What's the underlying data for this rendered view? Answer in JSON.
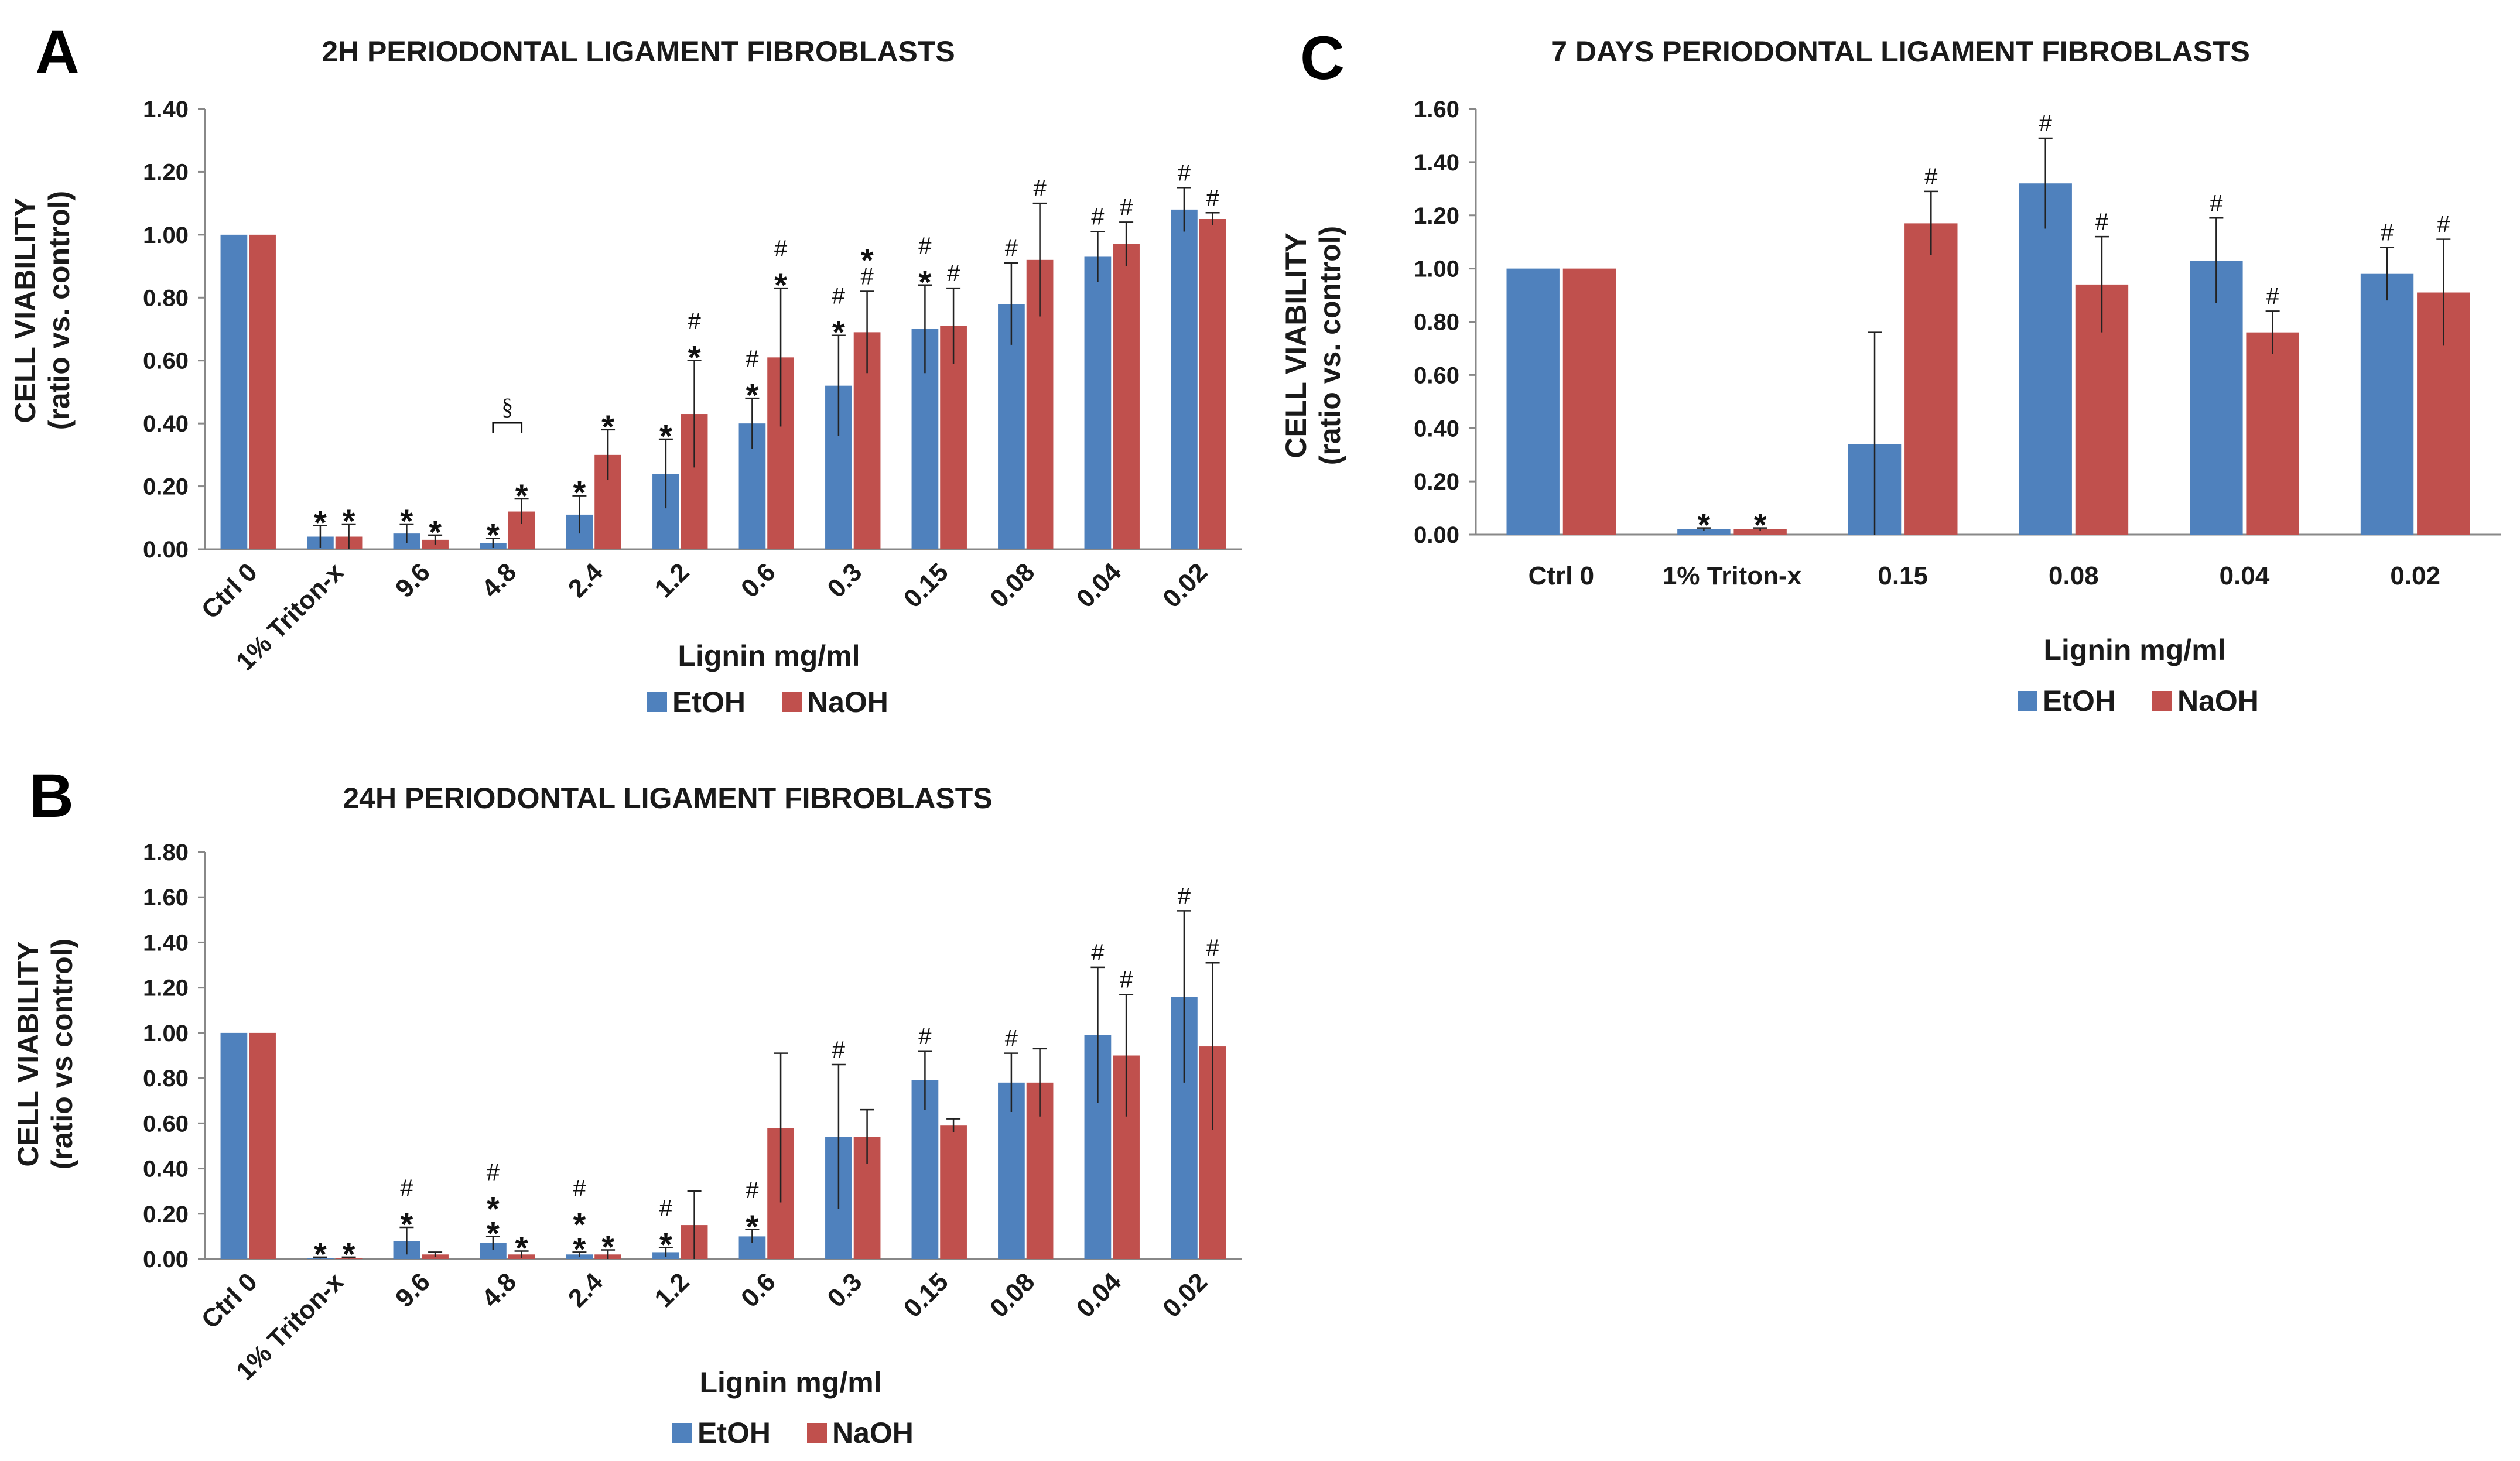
{
  "colors": {
    "etoh": "#4f81bd",
    "naoh": "#c0504d",
    "axis": "#888888",
    "text": "#1a1a1a"
  },
  "chart_data": [
    {
      "panel": "A",
      "type": "bar",
      "title": "2H PERIODONTAL LIGAMENT FIBROBLASTS",
      "ylabel_line1": "CELL VIABILITY",
      "ylabel_line2": "(ratio vs. control)",
      "xlabel": "Lignin mg/ml",
      "ylim": [
        0,
        1.4
      ],
      "yticks": [
        "0.00",
        "0.20",
        "0.40",
        "0.60",
        "0.80",
        "1.00",
        "1.20",
        "1.40"
      ],
      "categories": [
        "Ctrl 0",
        "1% Triton-x",
        "9.6",
        "4.8",
        "2.4",
        "1.2",
        "0.6",
        "0.3",
        "0.15",
        "0.08",
        "0.04",
        "0.02"
      ],
      "series": [
        {
          "name": "EtOH",
          "values": [
            1.0,
            0.04,
            0.05,
            0.02,
            0.11,
            0.24,
            0.4,
            0.52,
            0.7,
            0.78,
            0.93,
            1.08
          ],
          "errors": [
            0.0,
            0.035,
            0.03,
            0.015,
            0.06,
            0.11,
            0.08,
            0.16,
            0.14,
            0.13,
            0.08,
            0.07
          ]
        },
        {
          "name": "NaOH",
          "values": [
            1.0,
            0.04,
            0.03,
            0.12,
            0.3,
            0.43,
            0.61,
            0.69,
            0.71,
            0.92,
            0.97,
            1.05
          ],
          "errors": [
            0.0,
            0.04,
            0.015,
            0.04,
            0.08,
            0.17,
            0.22,
            0.13,
            0.12,
            0.18,
            0.07,
            0.02
          ]
        }
      ],
      "annotations": [
        {
          "cat": 1,
          "series": 0,
          "marks": [
            "*"
          ]
        },
        {
          "cat": 1,
          "series": 1,
          "marks": [
            "*"
          ]
        },
        {
          "cat": 2,
          "series": 0,
          "marks": [
            "*"
          ]
        },
        {
          "cat": 2,
          "series": 1,
          "marks": [
            "*"
          ]
        },
        {
          "cat": 3,
          "series": 0,
          "marks": [
            "*"
          ]
        },
        {
          "cat": 3,
          "series": 1,
          "marks": [
            "*"
          ]
        },
        {
          "cat": 4,
          "series": 0,
          "marks": [
            "*"
          ]
        },
        {
          "cat": 4,
          "series": 1,
          "marks": [
            "*"
          ]
        },
        {
          "cat": 5,
          "series": 0,
          "marks": [
            "*"
          ]
        },
        {
          "cat": 5,
          "series": 1,
          "marks": [
            "*",
            "#"
          ]
        },
        {
          "cat": 6,
          "series": 0,
          "marks": [
            "*",
            "#"
          ]
        },
        {
          "cat": 6,
          "series": 1,
          "marks": [
            "*",
            "#"
          ]
        },
        {
          "cat": 7,
          "series": 0,
          "marks": [
            "*",
            "#"
          ]
        },
        {
          "cat": 7,
          "series": 1,
          "marks": [
            "#",
            "*"
          ]
        },
        {
          "cat": 8,
          "series": 0,
          "marks": [
            "*",
            "#"
          ]
        },
        {
          "cat": 8,
          "series": 1,
          "marks": [
            "#"
          ]
        },
        {
          "cat": 9,
          "series": 0,
          "marks": [
            "#"
          ]
        },
        {
          "cat": 9,
          "series": 1,
          "marks": [
            "#"
          ]
        },
        {
          "cat": 10,
          "series": 0,
          "marks": [
            "#"
          ]
        },
        {
          "cat": 10,
          "series": 1,
          "marks": [
            "#"
          ]
        },
        {
          "cat": 11,
          "series": 0,
          "marks": [
            "#"
          ]
        },
        {
          "cat": 11,
          "series": 1,
          "marks": [
            "#"
          ]
        }
      ],
      "bracket": {
        "cat": 3,
        "symbol": "§"
      },
      "legend": [
        "EtOH",
        "NaOH"
      ],
      "grid": false
    },
    {
      "panel": "B",
      "type": "bar",
      "title": "24H PERIODONTAL LIGAMENT FIBROBLASTS",
      "ylabel_line1": "CELL VIABILITY",
      "ylabel_line2": "(ratio vs control)",
      "xlabel": "Lignin mg/ml",
      "ylim": [
        0,
        1.8
      ],
      "yticks": [
        "0.00",
        "0.20",
        "0.40",
        "0.60",
        "0.80",
        "1.00",
        "1.20",
        "1.40",
        "1.60",
        "1.80"
      ],
      "categories": [
        "Ctrl 0",
        "1% Triton-x",
        "9.6",
        "4.8",
        "2.4",
        "1.2",
        "0.6",
        "0.3",
        "0.15",
        "0.08",
        "0.04",
        "0.02"
      ],
      "series": [
        {
          "name": "EtOH",
          "values": [
            1.0,
            0.005,
            0.08,
            0.07,
            0.02,
            0.03,
            0.1,
            0.54,
            0.79,
            0.78,
            0.99,
            1.16
          ],
          "errors": [
            0.0,
            0.003,
            0.06,
            0.03,
            0.01,
            0.02,
            0.03,
            0.32,
            0.13,
            0.13,
            0.3,
            0.38
          ]
        },
        {
          "name": "NaOH",
          "values": [
            1.0,
            0.005,
            0.02,
            0.02,
            0.02,
            0.15,
            0.58,
            0.54,
            0.59,
            0.78,
            0.9,
            0.94
          ],
          "errors": [
            0.0,
            0.003,
            0.01,
            0.015,
            0.02,
            0.15,
            0.33,
            0.12,
            0.03,
            0.15,
            0.27,
            0.37
          ]
        }
      ],
      "annotations": [
        {
          "cat": 1,
          "series": 0,
          "marks": [
            "*"
          ]
        },
        {
          "cat": 1,
          "series": 1,
          "marks": [
            "*"
          ]
        },
        {
          "cat": 2,
          "series": 0,
          "marks": [
            "*",
            "#"
          ]
        },
        {
          "cat": 3,
          "series": 0,
          "marks": [
            "*",
            "*",
            "#"
          ]
        },
        {
          "cat": 3,
          "series": 1,
          "marks": [
            "*"
          ]
        },
        {
          "cat": 4,
          "series": 0,
          "marks": [
            "*",
            "*",
            "#"
          ]
        },
        {
          "cat": 4,
          "series": 1,
          "marks": [
            "*"
          ]
        },
        {
          "cat": 5,
          "series": 0,
          "marks": [
            "*",
            "#"
          ]
        },
        {
          "cat": 6,
          "series": 0,
          "marks": [
            "*",
            "#"
          ]
        },
        {
          "cat": 7,
          "series": 0,
          "marks": [
            "#"
          ]
        },
        {
          "cat": 8,
          "series": 0,
          "marks": [
            "#"
          ]
        },
        {
          "cat": 9,
          "series": 0,
          "marks": [
            "#"
          ]
        },
        {
          "cat": 10,
          "series": 0,
          "marks": [
            "#"
          ]
        },
        {
          "cat": 10,
          "series": 1,
          "marks": [
            "#"
          ]
        },
        {
          "cat": 11,
          "series": 0,
          "marks": [
            "#"
          ]
        },
        {
          "cat": 11,
          "series": 1,
          "marks": [
            "#"
          ]
        }
      ],
      "legend": [
        "EtOH",
        "NaOH"
      ],
      "grid": false
    },
    {
      "panel": "C",
      "type": "bar",
      "title": "7 DAYS PERIODONTAL LIGAMENT FIBROBLASTS",
      "ylabel_line1": "CELL VIABILITY",
      "ylabel_line2": "(ratio vs. control)",
      "xlabel": "Lignin mg/ml",
      "ylim": [
        0,
        1.6
      ],
      "yticks": [
        "0.00",
        "0.20",
        "0.40",
        "0.60",
        "0.80",
        "1.00",
        "1.20",
        "1.40",
        "1.60"
      ],
      "categories": [
        "Ctrl 0",
        "1% Triton-x",
        "0.15",
        "0.08",
        "0.04",
        "0.02"
      ],
      "series": [
        {
          "name": "EtOH",
          "values": [
            1.0,
            0.02,
            0.34,
            1.32,
            1.03,
            0.98
          ],
          "errors": [
            0.0,
            0.005,
            0.42,
            0.17,
            0.16,
            0.1
          ]
        },
        {
          "name": "NaOH",
          "values": [
            1.0,
            0.02,
            1.17,
            0.94,
            0.76,
            0.91
          ],
          "errors": [
            0.0,
            0.005,
            0.12,
            0.18,
            0.08,
            0.2
          ]
        }
      ],
      "annotations": [
        {
          "cat": 1,
          "series": 0,
          "marks": [
            "*"
          ]
        },
        {
          "cat": 1,
          "series": 1,
          "marks": [
            "*"
          ]
        },
        {
          "cat": 2,
          "series": 1,
          "marks": [
            "#"
          ]
        },
        {
          "cat": 3,
          "series": 0,
          "marks": [
            "#"
          ]
        },
        {
          "cat": 3,
          "series": 1,
          "marks": [
            "#"
          ]
        },
        {
          "cat": 4,
          "series": 0,
          "marks": [
            "#"
          ]
        },
        {
          "cat": 4,
          "series": 1,
          "marks": [
            "#"
          ]
        },
        {
          "cat": 5,
          "series": 0,
          "marks": [
            "#"
          ]
        },
        {
          "cat": 5,
          "series": 1,
          "marks": [
            "#"
          ]
        }
      ],
      "legend": [
        "EtOH",
        "NaOH"
      ],
      "grid": false
    }
  ]
}
